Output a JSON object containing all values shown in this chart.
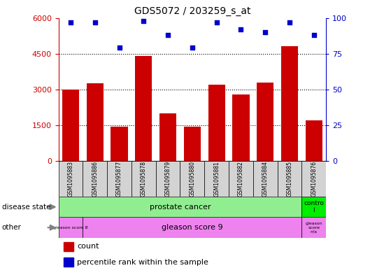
{
  "title": "GDS5072 / 203259_s_at",
  "samples": [
    "GSM1095883",
    "GSM1095886",
    "GSM1095877",
    "GSM1095878",
    "GSM1095879",
    "GSM1095880",
    "GSM1095881",
    "GSM1095882",
    "GSM1095884",
    "GSM1095885",
    "GSM1095876"
  ],
  "counts": [
    3000,
    3250,
    1450,
    4400,
    2000,
    1450,
    3200,
    2800,
    3300,
    4800,
    1700
  ],
  "percentiles": [
    97,
    97,
    79,
    98,
    88,
    79,
    97,
    92,
    90,
    97,
    88
  ],
  "bar_color": "#cc0000",
  "dot_color": "#0000cc",
  "ylim_left": [
    0,
    6000
  ],
  "yticks_left": [
    0,
    1500,
    3000,
    4500,
    6000
  ],
  "ylim_right": [
    0,
    100
  ],
  "yticks_right": [
    0,
    25,
    50,
    75,
    100
  ],
  "left_axis_color": "#cc0000",
  "right_axis_color": "#0000cc",
  "tick_label_bg": "#d3d3d3",
  "prostate_color": "#90ee90",
  "control_color": "#00ee00",
  "gleason_color": "#ee82ee",
  "grid_dotted_color": "#000000"
}
